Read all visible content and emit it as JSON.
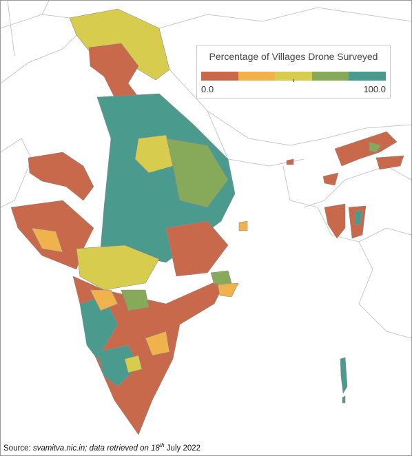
{
  "legend": {
    "title": "Percentage of Villages Drone Surveyed",
    "min_label": "0.0",
    "max_label": "100.0",
    "colors": [
      "#c9694b",
      "#f0b24c",
      "#d8cc4e",
      "#86a95a",
      "#4a9b8d"
    ]
  },
  "source": {
    "prefix": "Source: ",
    "body": "svamitva.nic.in; data retrieved on 18",
    "superscript": "th",
    "suffix": " July 2022"
  }
}
